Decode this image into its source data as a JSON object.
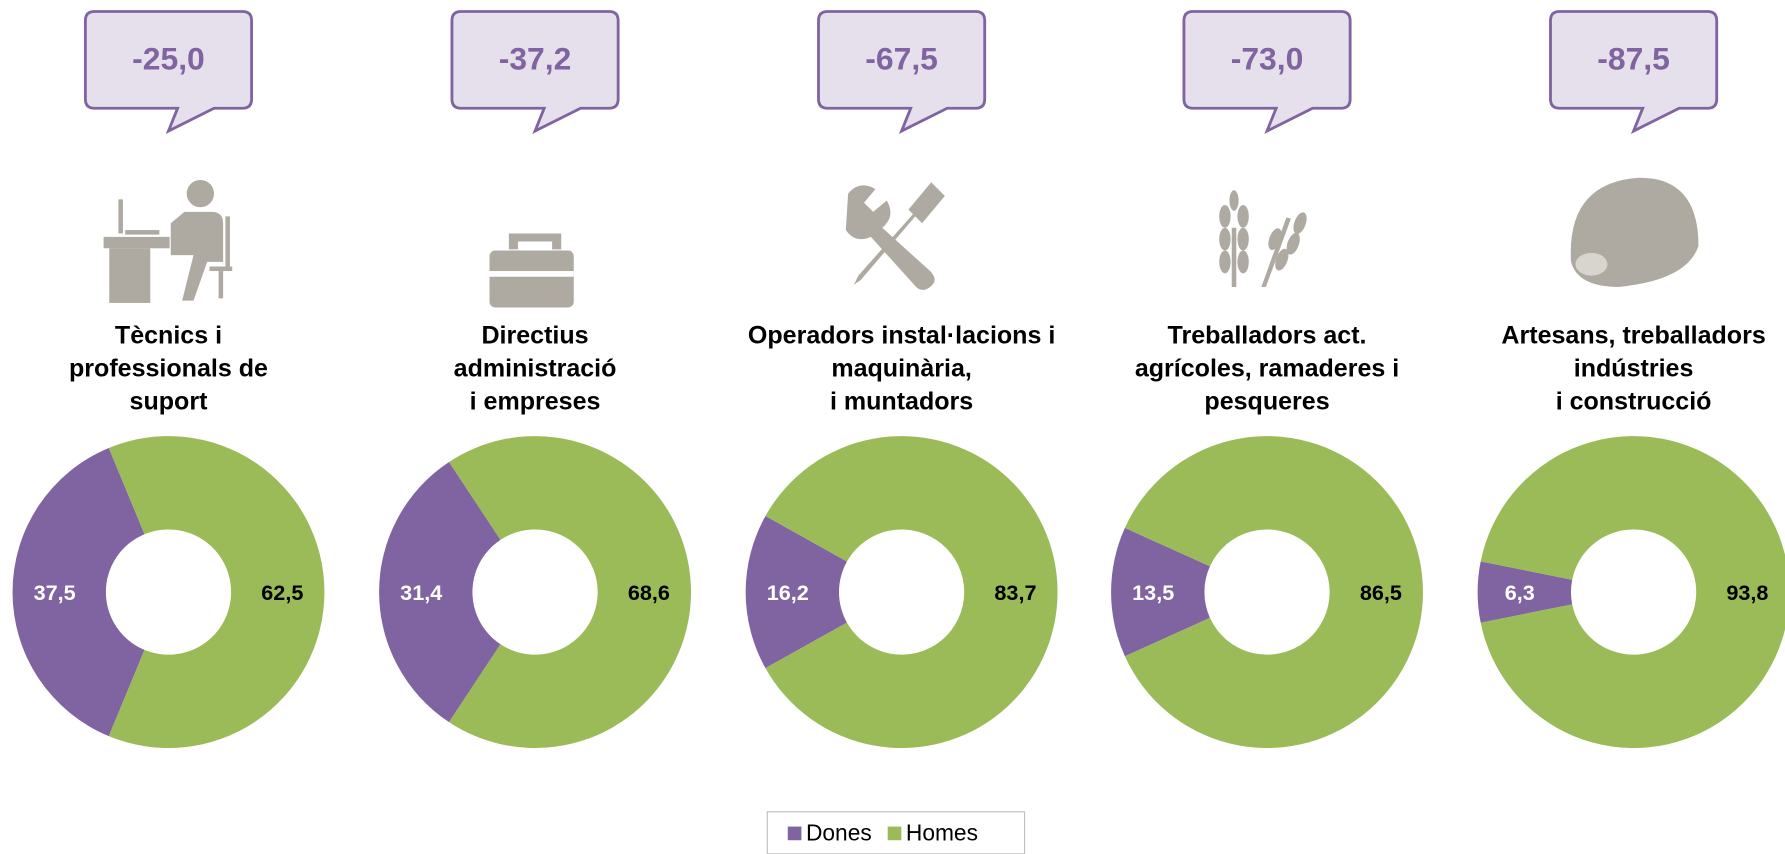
{
  "chart_data": [
    {
      "type": "pie",
      "donut": true,
      "annotation": "-25,0",
      "title": [
        "Tècnics i",
        "professionals de",
        "suport"
      ],
      "categories": [
        "Dones",
        "Homes"
      ],
      "values": [
        37.5,
        62.5
      ],
      "value_labels": [
        "37,5",
        "62,5"
      ],
      "colors": [
        "#8064a2",
        "#9bbb59"
      ]
    },
    {
      "type": "pie",
      "donut": true,
      "annotation": "-37,2",
      "title": [
        "Directius",
        "administració",
        "i empreses"
      ],
      "categories": [
        "Dones",
        "Homes"
      ],
      "values": [
        31.4,
        68.6
      ],
      "value_labels": [
        "31,4",
        "68,6"
      ],
      "colors": [
        "#8064a2",
        "#9bbb59"
      ]
    },
    {
      "type": "pie",
      "donut": true,
      "annotation": "-67,5",
      "title": [
        "Operadors instal·lacions i",
        "maquinària,",
        "i muntadors"
      ],
      "categories": [
        "Dones",
        "Homes"
      ],
      "values": [
        16.2,
        83.7
      ],
      "value_labels": [
        "16,2",
        "83,7"
      ],
      "colors": [
        "#8064a2",
        "#9bbb59"
      ]
    },
    {
      "type": "pie",
      "donut": true,
      "annotation": "-73,0",
      "title": [
        "Treballadors act.",
        "agrícoles, ramaderes i",
        "pesqueres"
      ],
      "categories": [
        "Dones",
        "Homes"
      ],
      "values": [
        13.5,
        86.5
      ],
      "value_labels": [
        "13,5",
        "86,5"
      ],
      "colors": [
        "#8064a2",
        "#9bbb59"
      ]
    },
    {
      "type": "pie",
      "donut": true,
      "annotation": "-87,5",
      "title": [
        "Artesans, treballadors",
        "indústries",
        "i construcció"
      ],
      "categories": [
        "Dones",
        "Homes"
      ],
      "values": [
        6.3,
        93.8
      ],
      "value_labels": [
        "6,3",
        "93,8"
      ],
      "colors": [
        "#8064a2",
        "#9bbb59"
      ]
    }
  ],
  "legend": {
    "items": [
      {
        "name": "Dones",
        "color": "#8064a2"
      },
      {
        "name": "Homes",
        "color": "#9bbb59"
      }
    ]
  }
}
